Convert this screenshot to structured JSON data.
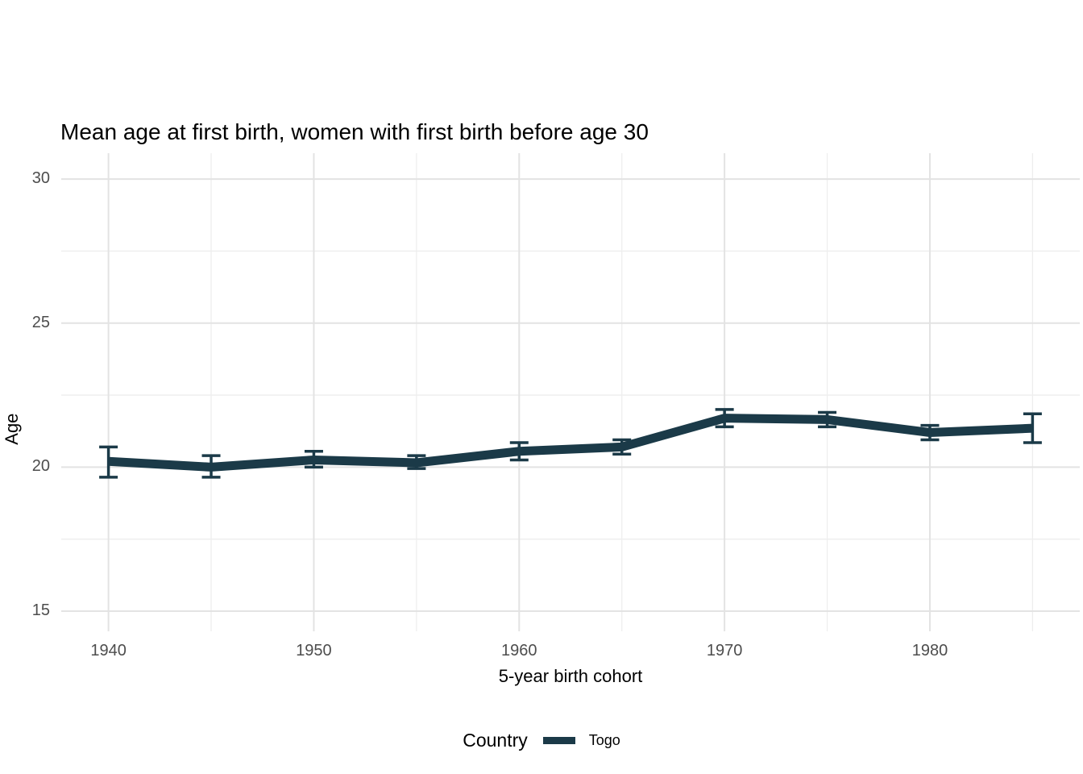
{
  "chart_data": {
    "type": "line",
    "title": "Mean age at first birth, women with first birth before age 30",
    "xlabel": "5-year birth cohort",
    "ylabel": "Age",
    "legend_title": "Country",
    "legend_position": "bottom",
    "grid": true,
    "x": [
      1940,
      1945,
      1950,
      1955,
      1960,
      1965,
      1970,
      1975,
      1980,
      1985
    ],
    "series": [
      {
        "name": "Togo",
        "values": [
          20.2,
          20.0,
          20.25,
          20.15,
          20.55,
          20.7,
          21.7,
          21.65,
          21.2,
          21.35
        ],
        "ci_low": [
          19.65,
          19.65,
          20.0,
          19.95,
          20.25,
          20.45,
          21.4,
          21.4,
          20.95,
          20.85
        ],
        "ci_high": [
          20.7,
          20.4,
          20.55,
          20.4,
          20.85,
          20.95,
          22.0,
          21.9,
          21.45,
          21.85
        ]
      }
    ],
    "x_major_ticks": [
      1940,
      1950,
      1960,
      1970,
      1980
    ],
    "x_minor_gridlines": [
      1945,
      1955,
      1965,
      1975,
      1985
    ],
    "y_major_ticks": [
      15,
      20,
      25,
      30
    ],
    "y_minor_gridlines": [
      17.5,
      22.5,
      27.5
    ],
    "xlim": [
      1937.7,
      1987.3
    ],
    "ylim": [
      14.3,
      30.9
    ]
  },
  "colors": {
    "series_togo": "#1b3a48",
    "grid_major": "#e3e3e3",
    "grid_minor": "#eeeeee",
    "tick_label": "#4d4d4d",
    "text": "#000000",
    "background": "#ffffff"
  }
}
